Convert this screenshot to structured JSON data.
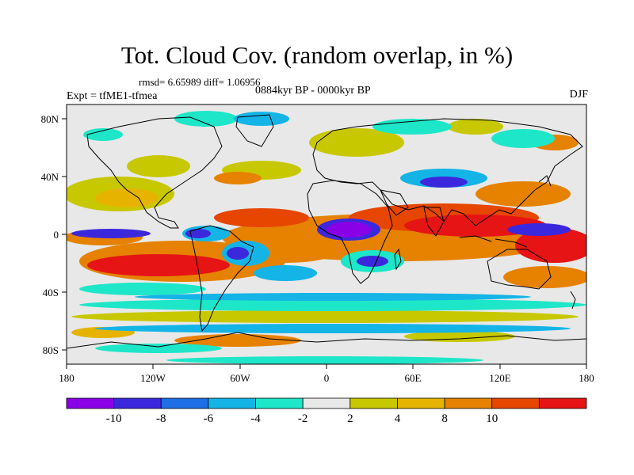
{
  "title": "Tot. Cloud Cov. (random overlap, in %)",
  "stats": "rmsd= 6.65989 diff= 1.06956",
  "period": "0884kyr BP - 0000kyr BP",
  "experiment": "Expt = tfME1-tfmea",
  "season": "DJF",
  "axes": {
    "lon_ticks": [
      "180",
      "120W",
      "60W",
      "0",
      "60E",
      "120E",
      "180"
    ],
    "lat_ticks": [
      "80N",
      "40N",
      "0",
      "40S",
      "80S"
    ]
  },
  "colorbar": {
    "labels": [
      "-10",
      "-8",
      "-6",
      "-4",
      "-2",
      "2",
      "4",
      "8",
      "10"
    ],
    "colors": [
      "#8a00e6",
      "#3c28dc",
      "#1e6ee6",
      "#14b4e6",
      "#1ee6c8",
      "#e8e8e8",
      "#c8c800",
      "#e6b400",
      "#e68200",
      "#e64600",
      "#e61414"
    ]
  },
  "colors": {
    "land_outline": "#000000",
    "neutral_fill": "#e8e8e8"
  }
}
